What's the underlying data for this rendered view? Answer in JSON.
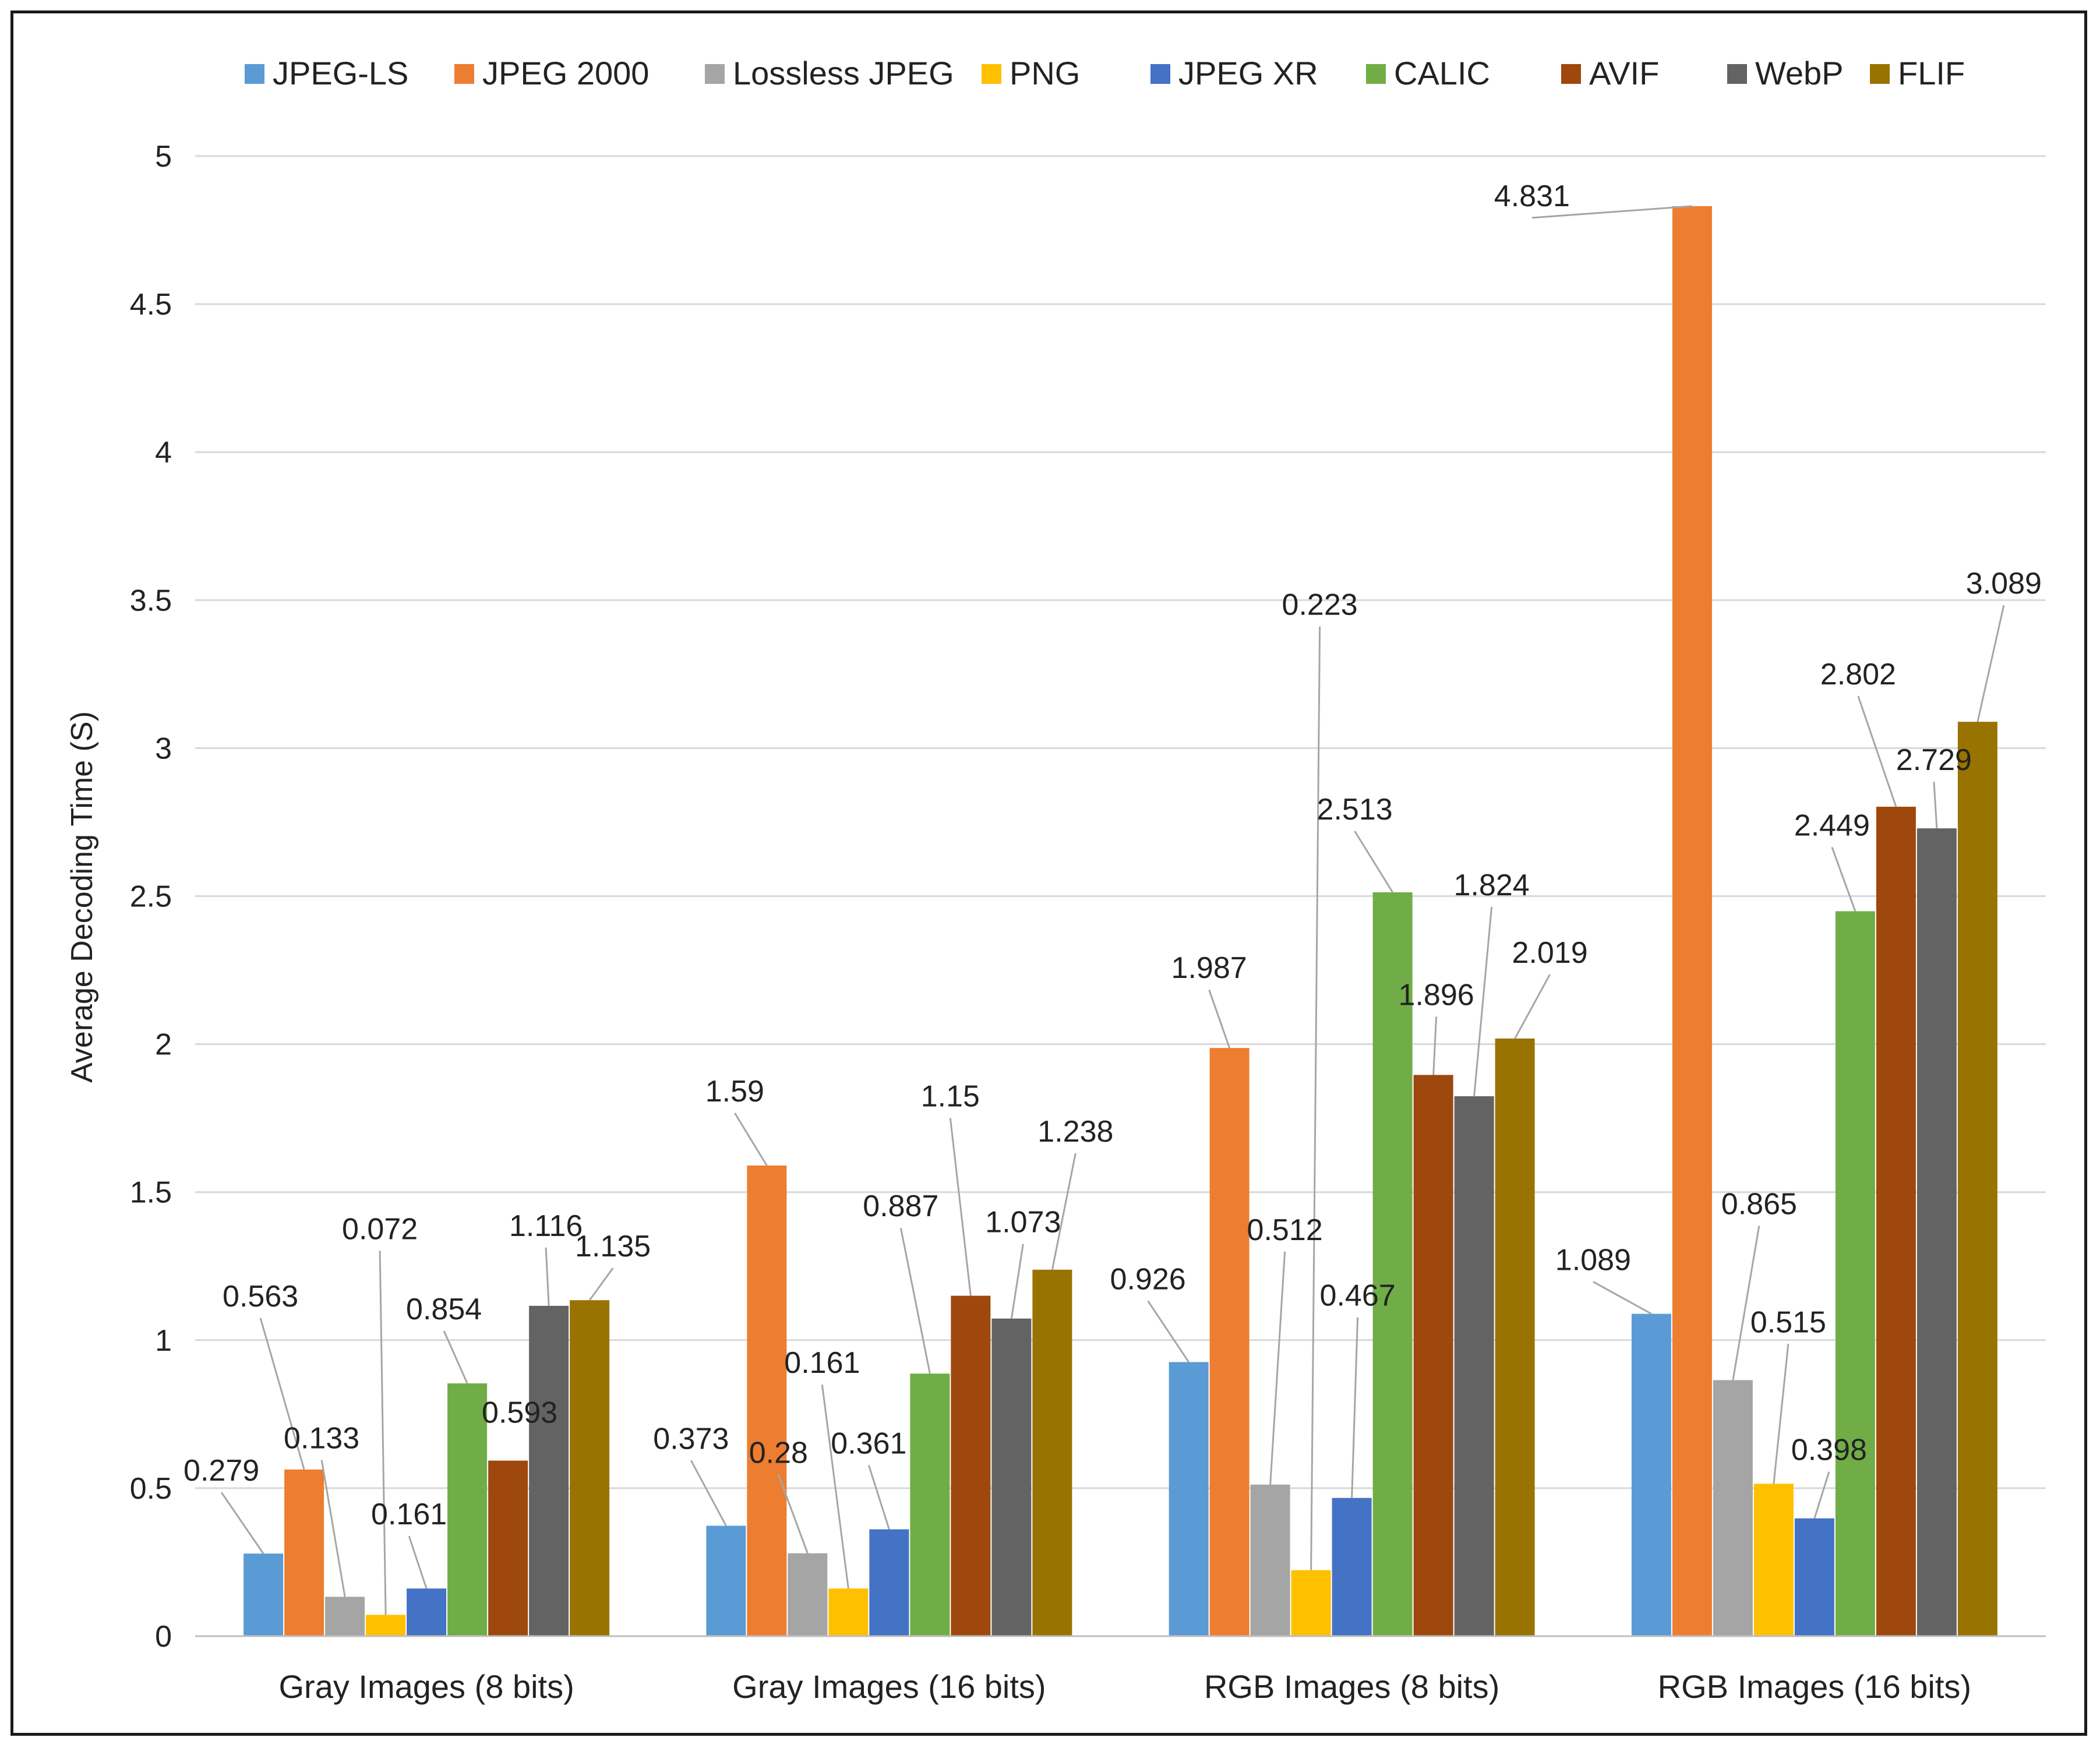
{
  "chart_data": {
    "type": "bar",
    "title": "",
    "xlabel": "",
    "ylabel": "Average Decoding Time (S)",
    "ylim": [
      0,
      5
    ],
    "yticks": [
      "0",
      "0.5",
      "1",
      "1.5",
      "2",
      "2.5",
      "3",
      "3.5",
      "4",
      "4.5",
      "5"
    ],
    "grid": true,
    "legend_position": "top",
    "categories": [
      "Gray Images (8 bits)",
      "Gray Images (16 bits)",
      "RGB Images (8 bits)",
      "RGB Images (16 bits)"
    ],
    "series": [
      {
        "name": "JPEG-LS",
        "color": "#5B9BD5",
        "values": [
          0.279,
          0.373,
          0.926,
          1.089
        ],
        "labels": [
          "0.279",
          "0.373",
          "0.926",
          "1.089"
        ]
      },
      {
        "name": "JPEG 2000",
        "color": "#ED7D31",
        "values": [
          0.563,
          1.59,
          1.987,
          4.831
        ],
        "labels": [
          "0.563",
          "1.59",
          "1.987",
          "4.831"
        ]
      },
      {
        "name": "Lossless JPEG",
        "color": "#A5A5A5",
        "values": [
          0.133,
          0.28,
          0.512,
          0.865
        ],
        "labels": [
          "0.133",
          "0.28",
          "0.512",
          "0.865"
        ]
      },
      {
        "name": "PNG",
        "color": "#FFC000",
        "values": [
          0.072,
          0.161,
          0.223,
          0.515
        ],
        "labels": [
          "0.072",
          "0.161",
          "0.223",
          "0.515"
        ]
      },
      {
        "name": "JPEG XR",
        "color": "#4472C4",
        "values": [
          0.161,
          0.361,
          0.467,
          0.398
        ],
        "labels": [
          "0.161",
          "0.361",
          "0.467",
          "0.398"
        ]
      },
      {
        "name": "CALIC",
        "color": "#70AD47",
        "values": [
          0.854,
          0.887,
          2.513,
          2.449
        ],
        "labels": [
          "0.854",
          "0.887",
          "2.513",
          "2.449"
        ]
      },
      {
        "name": "AVIF",
        "color": "#9E480E",
        "values": [
          0.593,
          1.15,
          1.896,
          2.802
        ],
        "labels": [
          "0.593",
          "1.15",
          "1.896",
          "2.802"
        ]
      },
      {
        "name": "WebP",
        "color": "#636363",
        "values": [
          1.116,
          1.073,
          1.824,
          2.729
        ],
        "labels": [
          "1.116",
          "1.073",
          "1.824",
          "2.729"
        ]
      },
      {
        "name": "FLIF",
        "color": "#997300",
        "values": [
          1.135,
          1.238,
          2.019,
          3.089
        ],
        "labels": [
          "1.135",
          "1.238",
          "2.019",
          "3.089"
        ]
      }
    ]
  }
}
